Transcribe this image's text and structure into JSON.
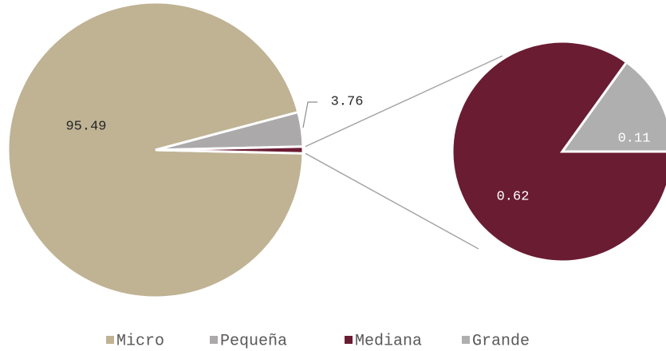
{
  "chart_data": {
    "type": "pie-of-pie",
    "categories": [
      "Micro",
      "Pequeña",
      "Mediana",
      "Grande"
    ],
    "values": [
      95.49,
      3.76,
      0.62,
      0.11
    ],
    "colors": [
      "#bfb394",
      "#aca9ab",
      "#6a1c32",
      "#afafaf"
    ],
    "secondary_count": 2,
    "legend": "bottom"
  }
}
